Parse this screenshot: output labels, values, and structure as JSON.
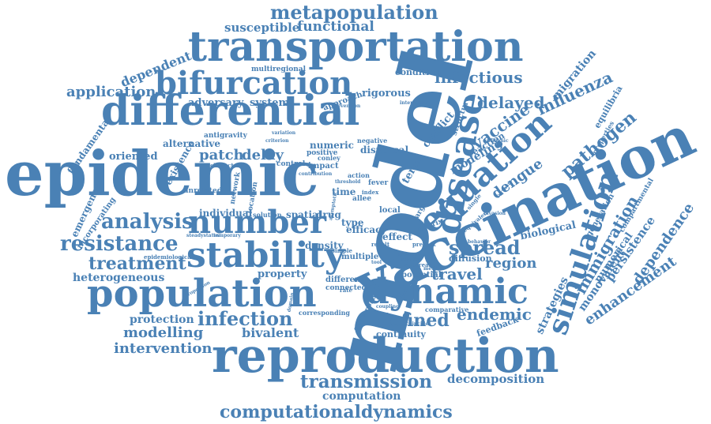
{
  "colors": {
    "word": "#4a81b5",
    "background": "#ffffff"
  },
  "words": {
    "model": "model",
    "epidemic": "epidemic",
    "vaccination": "vaccination",
    "reproduction": "reproduction",
    "transportation": "transportation",
    "differential": "differential",
    "population": "population",
    "stability": "stability",
    "disease": "disease",
    "equation": "equation",
    "number": "number",
    "bifurcation": "bifurcation",
    "dynamic": "dynamic",
    "simulation": "simulation",
    "metapopulation": "metapopulation",
    "infectious": "infectious",
    "resistance": "resistance",
    "analysis": "analysis",
    "transmission": "transmission",
    "computationaldynamics": "computationaldynamics",
    "infection": "infection",
    "functional": "functional",
    "susceptible": "susceptible",
    "treatment": "treatment",
    "spread": "spread",
    "defined": "defined",
    "endemic": "endemic",
    "travel": "travel",
    "vaccine": "vaccine",
    "delayed": "delayed",
    "influenza": "influenza",
    "pathogen": "pathogen",
    "dengue": "dengue",
    "immigration": "immigration",
    "enhancement": "enhancement",
    "dependence": "dependence",
    "persistence": "persistence",
    "monovalent": "monovalent",
    "numerical": "numerical",
    "application": "application",
    "dependent": "dependent",
    "intervention": "intervention",
    "modelling": "modelling",
    "protection": "protection",
    "heterogeneous": "heterogeneous",
    "bivalent": "bivalent",
    "decomposition": "decomposition",
    "computation": "computation",
    "delay": "delay",
    "patch": "patch",
    "region": "region",
    "strategies": "strategies",
    "biological": "biological",
    "rigorous": "rigorous",
    "migration": "migration",
    "modeling": "modeling",
    "conflict": "conflict",
    "term": "term",
    "individual": "individual",
    "spatial": "spatial",
    "drug": "drug",
    "property": "property",
    "adversary": "adversary",
    "system": "system",
    "alternative": "alternative",
    "existence": "existence",
    "oriented": "oriented",
    "fundamental": "fundamental",
    "emergence": "emergence",
    "incorporating": "incorporating",
    "multiregional": "multiregional",
    "condition": "condition",
    "numeric": "numeric",
    "positive": "positive",
    "dispersal": "dispersal",
    "efficacy": "efficacy",
    "effect": "effect",
    "type": "type",
    "density": "density",
    "multiple": "multiple",
    "diffusion": "diffusion",
    "potential": "potential",
    "continuity": "continuity",
    "feedback": "feedback",
    "generation": "generation",
    "compartmental": "compartmental",
    "equilibria": "equilibria",
    "structure": "structure",
    "reaction": "reaction",
    "time": "time",
    "fever": "fever",
    "local": "local",
    "action": "action",
    "impact": "impact",
    "control": "control",
    "different": "different",
    "connected": "connected",
    "corresponding": "corresponding",
    "comparative": "comparative",
    "correspond": "correspond",
    "approach": "approach",
    "location": "location",
    "network": "network",
    "unrelated": "unrelated",
    "antigravity": "antigravity",
    "characterize": "characterize",
    "epidemiological": "epidemiological",
    "solution": "solution",
    "allee": "allee",
    "target": "target",
    "matrix": "matrix",
    "index": "index",
    "properties": "properties",
    "contribution": "contribution",
    "coincide": "coincide",
    "conley": "conley",
    "negative": "negative",
    "asymptotic": "asymptotic",
    "outbreak": "outbreak",
    "single": "single",
    "equivalent": "equivalent",
    "present": "present",
    "criterion": "criterion",
    "variation": "variation",
    "steadystates": "steadystates",
    "temporary": "temporary",
    "rate": "rate",
    "tool": "tool",
    "simple": "simple",
    "result": "result",
    "interaction": "interaction",
    "behavior": "behavior",
    "antigenic": "antigenic",
    "threshold": "threshold",
    "measure": "measure",
    "related": "related",
    "method": "method",
    "further": "further",
    "domain": "domain",
    "prevention": "prevention",
    "proportion": "proportion",
    "coupling": "coupling",
    "invasion": "invasion"
  }
}
